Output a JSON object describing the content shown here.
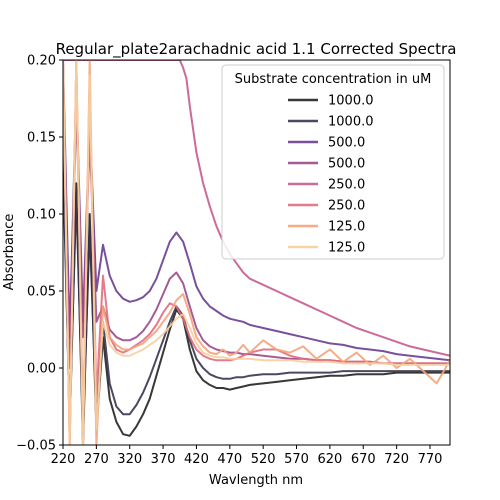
{
  "chart_data": {
    "type": "line",
    "title": "Regular_plate2arachadnic acid 1.1 Corrected Spectra",
    "xlabel": "Wavlength nm",
    "ylabel": "Absorbance",
    "xlim": [
      220,
      800
    ],
    "ylim": [
      -0.05,
      0.2
    ],
    "x_ticks": [
      "220",
      "270",
      "320",
      "370",
      "420",
      "470",
      "520",
      "570",
      "620",
      "670",
      "720",
      "770"
    ],
    "y_ticks": [
      "−0.05",
      "0.00",
      "0.05",
      "0.10",
      "0.15",
      "0.20"
    ],
    "grid": false,
    "legend": {
      "title": "Substrate concentration in uM",
      "position": "top-right"
    },
    "series": [
      {
        "name": "1000.0",
        "color": "#222222",
        "x": [
          220,
          230,
          240,
          250,
          260,
          270,
          280,
          290,
          300,
          310,
          320,
          330,
          340,
          350,
          360,
          370,
          380,
          390,
          400,
          410,
          420,
          430,
          440,
          450,
          460,
          470,
          480,
          490,
          500,
          520,
          540,
          560,
          580,
          600,
          620,
          640,
          660,
          680,
          700,
          720,
          740,
          760,
          780,
          800
        ],
        "y": [
          0.15,
          -0.04,
          0.12,
          -0.05,
          0.1,
          -0.04,
          0.02,
          -0.02,
          -0.035,
          -0.043,
          -0.044,
          -0.038,
          -0.03,
          -0.02,
          -0.005,
          0.01,
          0.025,
          0.038,
          0.032,
          0.012,
          -0.002,
          -0.008,
          -0.011,
          -0.013,
          -0.013,
          -0.014,
          -0.013,
          -0.012,
          -0.011,
          -0.01,
          -0.009,
          -0.008,
          -0.007,
          -0.006,
          -0.005,
          -0.005,
          -0.004,
          -0.004,
          -0.004,
          -0.003,
          -0.003,
          -0.003,
          -0.003,
          -0.003
        ]
      },
      {
        "name": "1000.0",
        "color": "#3a3450",
        "x": [
          220,
          230,
          240,
          250,
          260,
          270,
          280,
          290,
          300,
          310,
          320,
          330,
          340,
          350,
          360,
          370,
          380,
          390,
          400,
          410,
          420,
          430,
          440,
          450,
          460,
          470,
          480,
          490,
          500,
          520,
          540,
          560,
          580,
          600,
          620,
          640,
          660,
          680,
          700,
          720,
          740,
          760,
          780,
          800
        ],
        "y": [
          0.13,
          -0.03,
          0.11,
          -0.04,
          0.09,
          -0.03,
          0.03,
          -0.01,
          -0.025,
          -0.03,
          -0.03,
          -0.024,
          -0.016,
          -0.006,
          0.006,
          0.018,
          0.03,
          0.04,
          0.034,
          0.018,
          0.006,
          0.0,
          -0.004,
          -0.006,
          -0.007,
          -0.007,
          -0.006,
          -0.006,
          -0.005,
          -0.004,
          -0.004,
          -0.003,
          -0.003,
          -0.003,
          -0.003,
          -0.002,
          -0.002,
          -0.002,
          -0.002,
          -0.002,
          -0.002,
          -0.002,
          -0.002,
          -0.002
        ]
      },
      {
        "name": "500.0",
        "color": "#6a3d8f",
        "x": [
          220,
          230,
          240,
          250,
          260,
          270,
          280,
          290,
          300,
          310,
          320,
          330,
          340,
          350,
          360,
          370,
          380,
          390,
          400,
          410,
          420,
          430,
          440,
          450,
          460,
          470,
          480,
          490,
          500,
          520,
          540,
          560,
          580,
          600,
          620,
          640,
          660,
          680,
          700,
          720,
          740,
          760,
          780,
          800
        ],
        "y": [
          0.2,
          0.02,
          0.18,
          0.03,
          0.16,
          0.05,
          0.08,
          0.06,
          0.05,
          0.045,
          0.043,
          0.044,
          0.046,
          0.05,
          0.058,
          0.07,
          0.082,
          0.088,
          0.082,
          0.068,
          0.053,
          0.045,
          0.04,
          0.037,
          0.034,
          0.032,
          0.031,
          0.03,
          0.028,
          0.026,
          0.024,
          0.022,
          0.02,
          0.018,
          0.016,
          0.015,
          0.013,
          0.012,
          0.011,
          0.009,
          0.008,
          0.007,
          0.006,
          0.005
        ]
      },
      {
        "name": "500.0",
        "color": "#9a4a8a",
        "x": [
          220,
          230,
          240,
          250,
          260,
          270,
          280,
          290,
          300,
          310,
          320,
          330,
          340,
          350,
          360,
          370,
          380,
          390,
          400,
          410,
          420,
          430,
          440,
          450,
          460,
          470,
          480,
          490,
          500,
          520,
          540,
          560,
          580,
          600,
          620,
          640,
          660,
          680,
          700,
          720,
          740,
          760,
          780,
          800
        ],
        "y": [
          0.19,
          0.0,
          0.17,
          0.02,
          0.15,
          0.03,
          0.04,
          0.025,
          0.02,
          0.018,
          0.018,
          0.02,
          0.024,
          0.03,
          0.038,
          0.048,
          0.058,
          0.062,
          0.055,
          0.04,
          0.026,
          0.018,
          0.014,
          0.012,
          0.011,
          0.01,
          0.01,
          0.009,
          0.009,
          0.008,
          0.007,
          0.006,
          0.006,
          0.005,
          0.005,
          0.004,
          0.004,
          0.004,
          0.003,
          0.003,
          0.003,
          0.003,
          0.003,
          0.003
        ]
      },
      {
        "name": "250.0",
        "color": "#c75a8e",
        "x": [
          220,
          240,
          260,
          280,
          300,
          320,
          340,
          360,
          380,
          390,
          395,
          400,
          405,
          410,
          420,
          430,
          440,
          450,
          460,
          470,
          480,
          490,
          500,
          520,
          540,
          560,
          580,
          600,
          620,
          640,
          660,
          680,
          700,
          720,
          740,
          760,
          780,
          800
        ],
        "y": [
          0.2,
          0.2,
          0.2,
          0.2,
          0.2,
          0.2,
          0.2,
          0.2,
          0.2,
          0.2,
          0.2,
          0.195,
          0.188,
          0.17,
          0.14,
          0.12,
          0.105,
          0.092,
          0.082,
          0.074,
          0.068,
          0.062,
          0.058,
          0.054,
          0.05,
          0.046,
          0.042,
          0.038,
          0.034,
          0.03,
          0.026,
          0.023,
          0.02,
          0.017,
          0.014,
          0.012,
          0.01,
          0.008
        ]
      },
      {
        "name": "250.0",
        "color": "#e06d7e",
        "x": [
          220,
          230,
          240,
          250,
          260,
          270,
          280,
          290,
          300,
          310,
          320,
          330,
          340,
          350,
          360,
          370,
          380,
          390,
          400,
          410,
          420,
          430,
          440,
          450,
          460,
          470,
          480,
          490,
          500,
          520,
          540,
          560,
          580,
          600,
          620,
          640,
          660,
          680,
          700,
          720,
          740,
          760,
          780,
          800
        ],
        "y": [
          0.2,
          -0.05,
          0.2,
          -0.04,
          0.18,
          -0.02,
          0.06,
          0.02,
          0.012,
          0.01,
          0.012,
          0.015,
          0.018,
          0.022,
          0.028,
          0.036,
          0.042,
          0.04,
          0.032,
          0.02,
          0.012,
          0.008,
          0.006,
          0.005,
          0.005,
          0.005,
          0.006,
          0.008,
          0.01,
          0.012,
          0.012,
          0.008,
          0.006,
          0.005,
          0.005,
          0.004,
          0.004,
          0.004,
          0.003,
          0.003,
          0.003,
          0.003,
          0.003,
          0.003
        ]
      },
      {
        "name": "125.0",
        "color": "#f4a37a",
        "x": [
          220,
          230,
          240,
          250,
          260,
          270,
          280,
          290,
          300,
          310,
          320,
          330,
          340,
          350,
          360,
          370,
          380,
          390,
          400,
          410,
          420,
          430,
          440,
          450,
          460,
          470,
          480,
          490,
          500,
          520,
          540,
          560,
          580,
          600,
          620,
          640,
          660,
          680,
          700,
          720,
          740,
          760,
          780,
          800
        ],
        "y": [
          0.2,
          -0.05,
          0.2,
          -0.05,
          0.2,
          -0.05,
          0.04,
          0.02,
          0.015,
          0.012,
          0.012,
          0.014,
          0.016,
          0.02,
          0.024,
          0.03,
          0.036,
          0.044,
          0.048,
          0.035,
          0.02,
          0.014,
          0.01,
          0.009,
          0.012,
          0.008,
          0.01,
          0.015,
          0.01,
          0.018,
          0.012,
          0.01,
          0.014,
          0.006,
          0.012,
          0.004,
          0.01,
          0.002,
          0.008,
          0.0,
          0.006,
          -0.002,
          -0.01,
          0.005
        ]
      },
      {
        "name": "125.0",
        "color": "#f6cf9e",
        "x": [
          220,
          230,
          240,
          250,
          260,
          270,
          280,
          290,
          300,
          310,
          320,
          330,
          340,
          350,
          360,
          370,
          380,
          390,
          400,
          410,
          420,
          430,
          440,
          450,
          460,
          470,
          480,
          490,
          500,
          520,
          540,
          560,
          580,
          600,
          620,
          640,
          660,
          680,
          700,
          720,
          740,
          760,
          780,
          800
        ],
        "y": [
          0.2,
          -0.05,
          0.2,
          -0.05,
          0.19,
          -0.04,
          0.03,
          0.015,
          0.01,
          0.008,
          0.008,
          0.01,
          0.012,
          0.015,
          0.018,
          0.022,
          0.027,
          0.032,
          0.035,
          0.026,
          0.016,
          0.01,
          0.008,
          0.007,
          0.007,
          0.006,
          0.006,
          0.006,
          0.006,
          0.005,
          0.005,
          0.005,
          0.004,
          0.004,
          0.004,
          0.003,
          0.003,
          0.003,
          0.003,
          0.002,
          0.002,
          0.002,
          0.002,
          0.002
        ]
      }
    ]
  }
}
